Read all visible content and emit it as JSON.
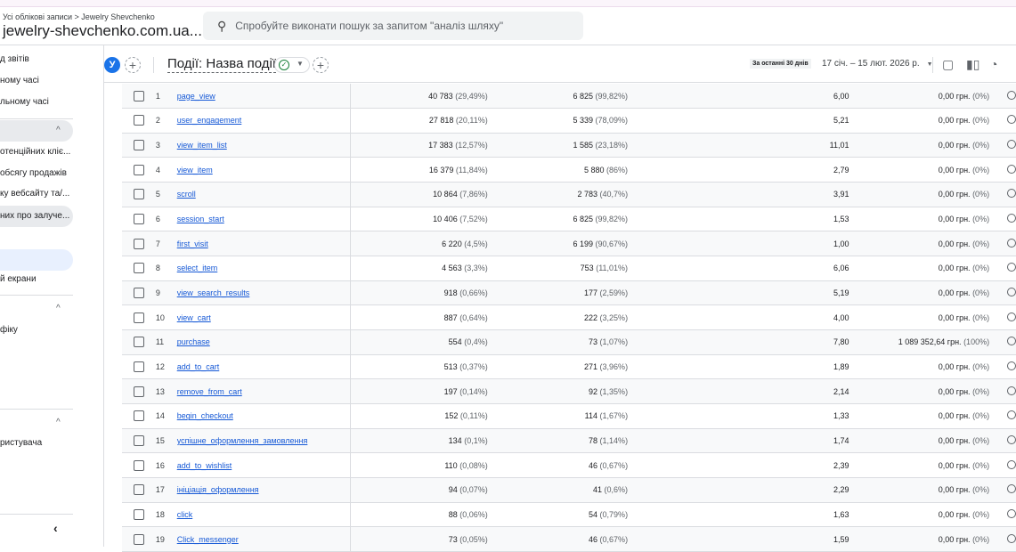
{
  "header": {
    "breadcrumb": "Усі облікові записи > Jewelry Shevchenko",
    "property": "jewelry-shevchenko.com.ua...",
    "search_placeholder": "Спробуйте виконати пошук за запитом \"аналіз шляху\""
  },
  "sidebar": {
    "items": [
      "д звітів",
      "ному часі",
      "льному часі",
      "отенційних клiє...",
      "обсягу продажів",
      "ку вебсайту та/...",
      "них про залуче...",
      "й екрани",
      "фіку",
      "ристувача"
    ]
  },
  "toolbar": {
    "avatar": "У",
    "title": "Події: Назва події",
    "range_badge": "За останні 30 днів",
    "dates": "17 січ. – 15 лют. 2026 р."
  },
  "table": {
    "rows": [
      [
        "1",
        "page_view",
        "40 783",
        "(29,49%)",
        "6 825",
        "(99,82%)",
        "6,00",
        "0,00 грн.",
        "(0%)"
      ],
      [
        "2",
        "user_engagement",
        "27 818",
        "(20,11%)",
        "5 339",
        "(78,09%)",
        "5,21",
        "0,00 грн.",
        "(0%)"
      ],
      [
        "3",
        "view_item_list",
        "17 383",
        "(12,57%)",
        "1 585",
        "(23,18%)",
        "11,01",
        "0,00 грн.",
        "(0%)"
      ],
      [
        "4",
        "view_item",
        "16 379",
        "(11,84%)",
        "5 880",
        "(86%)",
        "2,79",
        "0,00 грн.",
        "(0%)"
      ],
      [
        "5",
        "scroll",
        "10 864",
        "(7,86%)",
        "2 783",
        "(40,7%)",
        "3,91",
        "0,00 грн.",
        "(0%)"
      ],
      [
        "6",
        "session_start",
        "10 406",
        "(7,52%)",
        "6 825",
        "(99,82%)",
        "1,53",
        "0,00 грн.",
        "(0%)"
      ],
      [
        "7",
        "first_visit",
        "6 220",
        "(4,5%)",
        "6 199",
        "(90,67%)",
        "1,00",
        "0,00 грн.",
        "(0%)"
      ],
      [
        "8",
        "select_item",
        "4 563",
        "(3,3%)",
        "753",
        "(11,01%)",
        "6,06",
        "0,00 грн.",
        "(0%)"
      ],
      [
        "9",
        "view_search_results",
        "918",
        "(0,66%)",
        "177",
        "(2,59%)",
        "5,19",
        "0,00 грн.",
        "(0%)"
      ],
      [
        "10",
        "view_cart",
        "887",
        "(0,64%)",
        "222",
        "(3,25%)",
        "4,00",
        "0,00 грн.",
        "(0%)"
      ],
      [
        "11",
        "purchase",
        "554",
        "(0,4%)",
        "73",
        "(1,07%)",
        "7,80",
        "1 089 352,64 грн.",
        "(100%)"
      ],
      [
        "12",
        "add_to_cart",
        "513",
        "(0,37%)",
        "271",
        "(3,96%)",
        "1,89",
        "0,00 грн.",
        "(0%)"
      ],
      [
        "13",
        "remove_from_cart",
        "197",
        "(0,14%)",
        "92",
        "(1,35%)",
        "2,14",
        "0,00 грн.",
        "(0%)"
      ],
      [
        "14",
        "begin_checkout",
        "152",
        "(0,11%)",
        "114",
        "(1,67%)",
        "1,33",
        "0,00 грн.",
        "(0%)"
      ],
      [
        "15",
        "успішне_оформлення_замовлення",
        "134",
        "(0,1%)",
        "78",
        "(1,14%)",
        "1,74",
        "0,00 грн.",
        "(0%)"
      ],
      [
        "16",
        "add_to_wishlist",
        "110",
        "(0,08%)",
        "46",
        "(0,67%)",
        "2,39",
        "0,00 грн.",
        "(0%)"
      ],
      [
        "17",
        "ініціація_оформлення",
        "94",
        "(0,07%)",
        "41",
        "(0,6%)",
        "2,29",
        "0,00 грн.",
        "(0%)"
      ],
      [
        "18",
        "click",
        "88",
        "(0,06%)",
        "54",
        "(0,79%)",
        "1,63",
        "0,00 грн.",
        "(0%)"
      ],
      [
        "19",
        "Click_messenger",
        "73",
        "(0,05%)",
        "46",
        "(0,67%)",
        "1,59",
        "0,00 грн.",
        "(0%)"
      ]
    ]
  }
}
